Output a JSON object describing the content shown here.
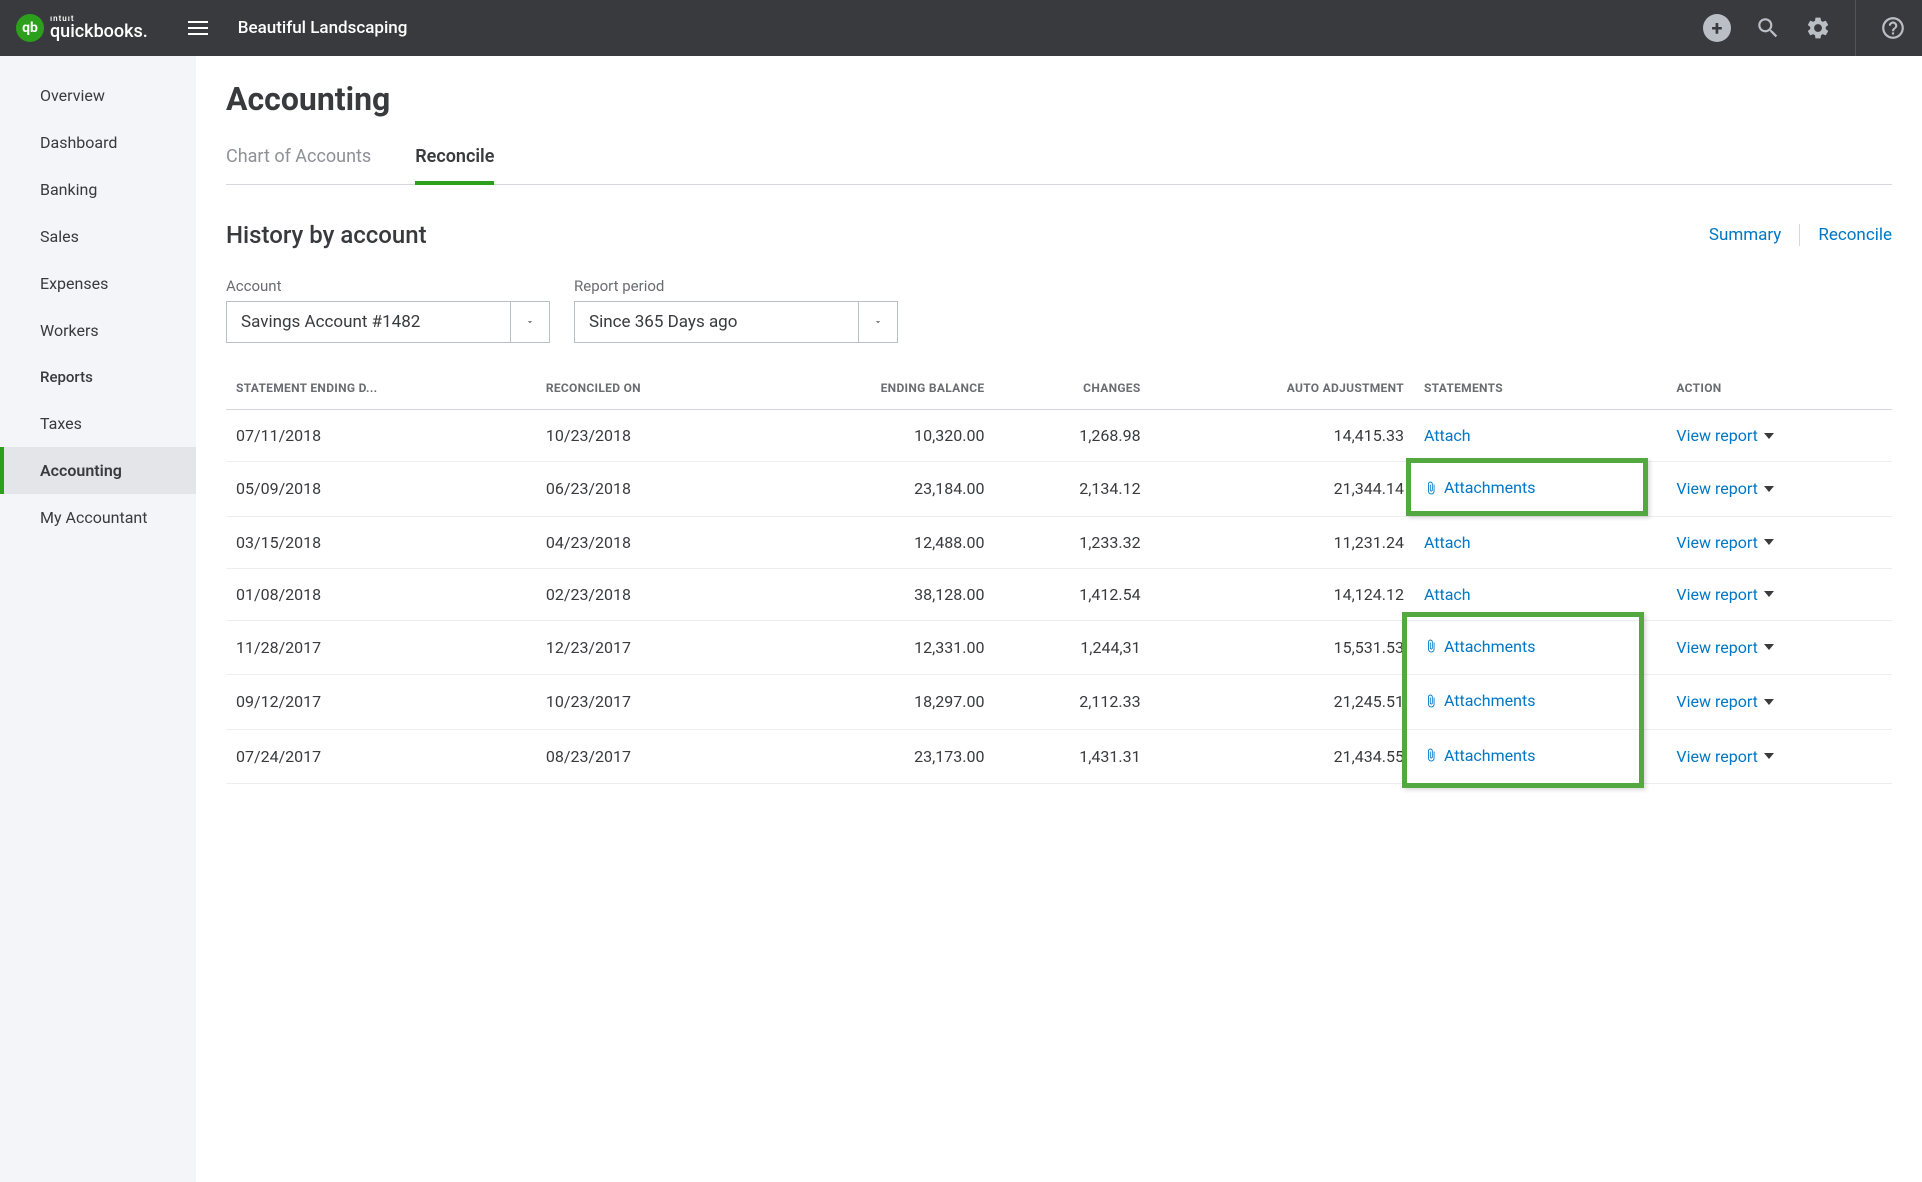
{
  "topbar": {
    "logo_small": "ıntuıt",
    "logo_big": "quickbooks.",
    "logo_badge": "qb",
    "company_name": "Beautiful Landscaping"
  },
  "sidebar": {
    "items": [
      {
        "label": "Overview",
        "active": false
      },
      {
        "label": "Dashboard",
        "active": false
      },
      {
        "label": "Banking",
        "active": false
      },
      {
        "label": "Sales",
        "active": false
      },
      {
        "label": "Expenses",
        "active": false
      },
      {
        "label": "Workers",
        "active": false
      },
      {
        "label": "Reports",
        "active": false,
        "variant": "reports"
      },
      {
        "label": "Taxes",
        "active": false
      },
      {
        "label": "Accounting",
        "active": true
      },
      {
        "label": "My Accountant",
        "active": false
      }
    ]
  },
  "page": {
    "title": "Accounting",
    "tabs": [
      {
        "label": "Chart of Accounts",
        "active": false
      },
      {
        "label": "Reconcile",
        "active": true
      }
    ],
    "section_title": "History by account",
    "summary_link": "Summary",
    "reconcile_link": "Reconcile",
    "filters": {
      "account_label": "Account",
      "account_value": "Savings Account #1482",
      "period_label": "Report period",
      "period_value": "Since 365 Days ago"
    },
    "table": {
      "columns": [
        {
          "label": "STATEMENT ENDING D...",
          "align": "left"
        },
        {
          "label": "RECONCILED ON",
          "align": "left"
        },
        {
          "label": "ENDING BALANCE",
          "align": "right"
        },
        {
          "label": "CHANGES",
          "align": "right"
        },
        {
          "label": "AUTO ADJUSTMENT",
          "align": "right"
        },
        {
          "label": "STATEMENTS",
          "align": "left"
        },
        {
          "label": "ACTION",
          "align": "left"
        }
      ],
      "view_report_label": "View report",
      "attach_label": "Attach",
      "attachments_label": "Attachments",
      "rows": [
        {
          "ending_date": "07/11/2018",
          "reconciled_on": "10/23/2018",
          "ending_balance": "10,320.00",
          "changes": "1,268.98",
          "auto_adjustment": "14,415.33",
          "has_attachments": false,
          "highlight": null
        },
        {
          "ending_date": "05/09/2018",
          "reconciled_on": "06/23/2018",
          "ending_balance": "23,184.00",
          "changes": "2,134.12",
          "auto_adjustment": "21,344.14",
          "has_attachments": true,
          "highlight": "single"
        },
        {
          "ending_date": "03/15/2018",
          "reconciled_on": "04/23/2018",
          "ending_balance": "12,488.00",
          "changes": "1,233.32",
          "auto_adjustment": "11,231.24",
          "has_attachments": false,
          "highlight": null
        },
        {
          "ending_date": "01/08/2018",
          "reconciled_on": "02/23/2018",
          "ending_balance": "38,128.00",
          "changes": "1,412.54",
          "auto_adjustment": "14,124.12",
          "has_attachments": false,
          "highlight": null
        },
        {
          "ending_date": "11/28/2017",
          "reconciled_on": "12/23/2017",
          "ending_balance": "12,331.00",
          "changes": "1,244,31",
          "auto_adjustment": "15,531.53",
          "has_attachments": true,
          "highlight": "group-start"
        },
        {
          "ending_date": "09/12/2017",
          "reconciled_on": "10/23/2017",
          "ending_balance": "18,297.00",
          "changes": "2,112.33",
          "auto_adjustment": "21,245.51",
          "has_attachments": true,
          "highlight": "group-mid"
        },
        {
          "ending_date": "07/24/2017",
          "reconciled_on": "08/23/2017",
          "ending_balance": "23,173.00",
          "changes": "1,431.31",
          "auto_adjustment": "21,434.55",
          "has_attachments": true,
          "highlight": "group-end"
        }
      ]
    }
  },
  "colors": {
    "brand_green": "#2ca01c",
    "highlight_green": "#53a93f",
    "link_blue": "#0077c5",
    "topbar_bg": "#393a3d",
    "sidebar_bg": "#f4f5f8"
  }
}
